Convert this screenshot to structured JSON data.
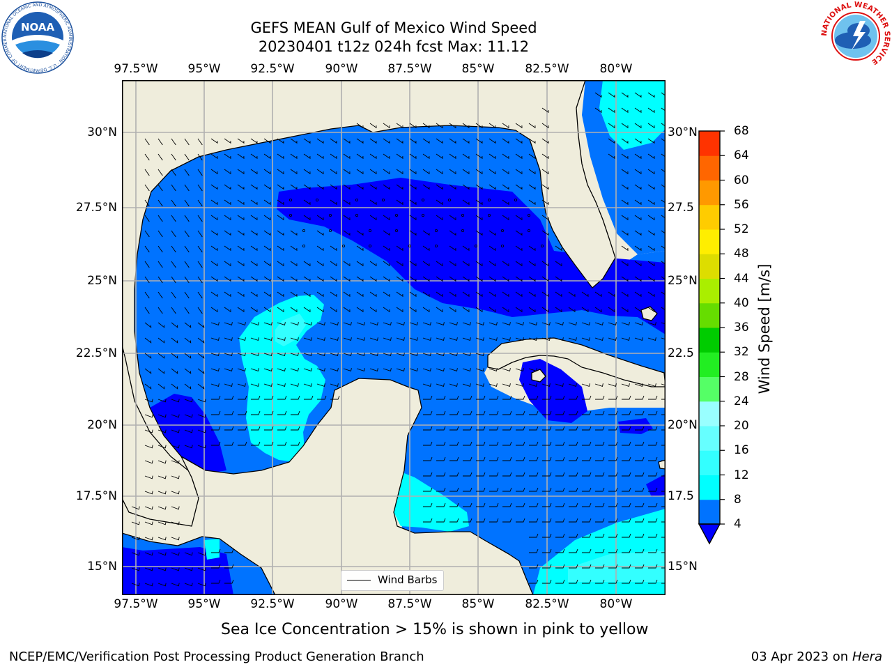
{
  "title": {
    "line1": "GEFS MEAN Gulf of Mexico Wind Speed",
    "line2": "20230401 t12z 024h fcst   Max: 11.12"
  },
  "logos": {
    "noaa": {
      "text": "NOAA",
      "ring_text": "NATIONAL OCEANIC AND ATMOSPHERIC ADMINISTRATION · U.S. DEPARTMENT OF COMMERCE"
    },
    "nws": {
      "ring_text": "NATIONAL WEATHER SERVICE"
    }
  },
  "map": {
    "lon_range": [
      -98.5,
      -78.7
    ],
    "lat_range": [
      14.0,
      31.6
    ],
    "lon_ticks": [
      "97.5°W",
      "95°W",
      "92.5°W",
      "90°W",
      "87.5°W",
      "85°W",
      "82.5°W",
      "80°W"
    ],
    "lat_ticks": [
      "30°N",
      "27.5°N",
      "25°N",
      "22.5°N",
      "20°N",
      "17.5°N",
      "15°N"
    ],
    "lat_ticks_right": [
      "30°N",
      "27.5",
      "25°N",
      "22.5",
      "20°N",
      "17.5",
      "15°N"
    ],
    "land_color": "#efeddc",
    "grid_color": "#b0b0b0"
  },
  "colorbar": {
    "title": "Wind Speed [m/s]",
    "levels": [
      "4",
      "8",
      "12",
      "16",
      "20",
      "24",
      "28",
      "32",
      "36",
      "40",
      "44",
      "48",
      "52",
      "56",
      "60",
      "64",
      "68"
    ],
    "colors": [
      "#0073ff",
      "#00ffff",
      "#33ffff",
      "#66ffff",
      "#99ffff",
      "#55ff66",
      "#22ee22",
      "#00cc00",
      "#66dd00",
      "#aaee00",
      "#dddd00",
      "#ffee00",
      "#ffcc00",
      "#ff9900",
      "#ff6600",
      "#ff3300",
      "#ff0000"
    ],
    "extend_color": "#0000ff"
  },
  "legend": {
    "label": "Wind Barbs"
  },
  "caption": "Sea Ice Concentration > 15% is shown in pink to yellow",
  "footer": {
    "left": "NCEP/EMC/Verification Post Processing Product Generation Branch",
    "right_date": "03 Apr 2023 on ",
    "right_host": "Hera"
  }
}
